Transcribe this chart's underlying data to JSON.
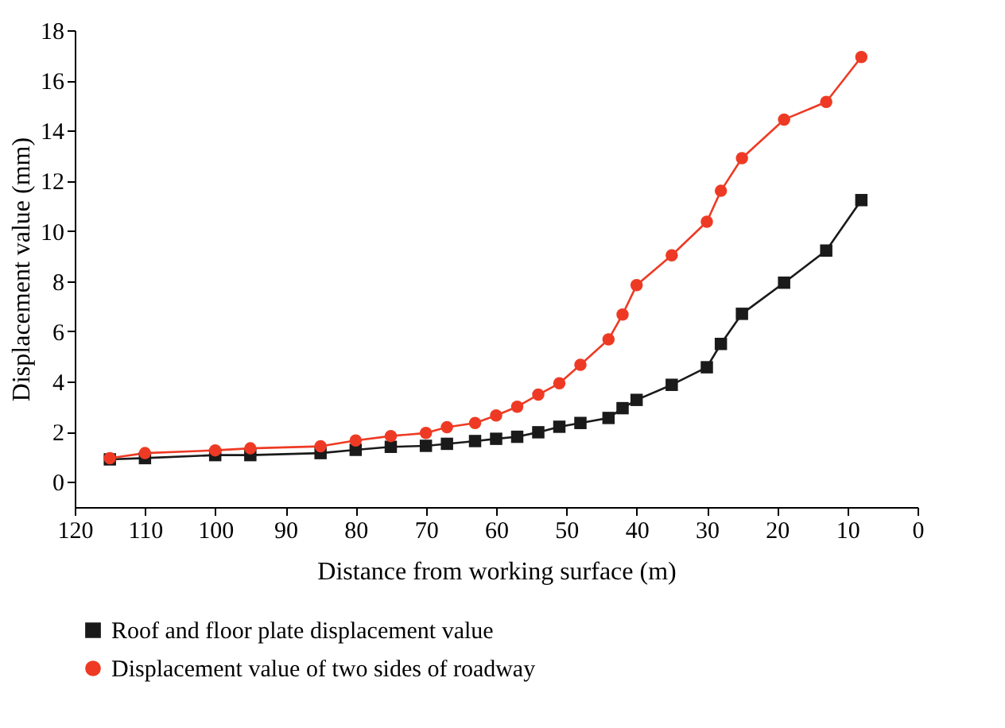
{
  "chart_data": {
    "type": "line",
    "xlabel": "Distance from working surface (m)",
    "ylabel": "Displacement value (mm)",
    "x": [
      115,
      110,
      100,
      95,
      85,
      80,
      75,
      70,
      67,
      63,
      60,
      57,
      54,
      51,
      48,
      44,
      42,
      40,
      35,
      30,
      28,
      25,
      19,
      13,
      8
    ],
    "series": [
      {
        "name": "Roof and floor plate displacement value",
        "color": "#1a1a1a",
        "marker": "square",
        "values": [
          0.9,
          0.95,
          1.07,
          1.07,
          1.15,
          1.28,
          1.4,
          1.44,
          1.52,
          1.63,
          1.72,
          1.8,
          1.98,
          2.2,
          2.35,
          2.55,
          2.94,
          3.27,
          3.87,
          4.57,
          5.5,
          6.7,
          7.94,
          9.22,
          11.23
        ]
      },
      {
        "name": "Displacement value of two sides of roadway",
        "color": "#ee3a24",
        "marker": "circle",
        "values": [
          0.95,
          1.15,
          1.26,
          1.34,
          1.42,
          1.65,
          1.83,
          1.95,
          2.18,
          2.35,
          2.65,
          3.0,
          3.48,
          3.93,
          4.67,
          5.68,
          6.67,
          7.84,
          9.03,
          10.37,
          11.6,
          12.9,
          14.44,
          15.14,
          16.93
        ]
      }
    ],
    "xlim": [
      120,
      0
    ],
    "xticks": [
      120,
      110,
      100,
      90,
      80,
      70,
      60,
      50,
      40,
      30,
      20,
      10,
      0
    ],
    "ylim": [
      -1,
      18
    ],
    "yticks": [
      0,
      2,
      4,
      6,
      8,
      10,
      12,
      14,
      16,
      18
    ],
    "grid": false,
    "legend": "bottom left",
    "line_style": "solid"
  }
}
